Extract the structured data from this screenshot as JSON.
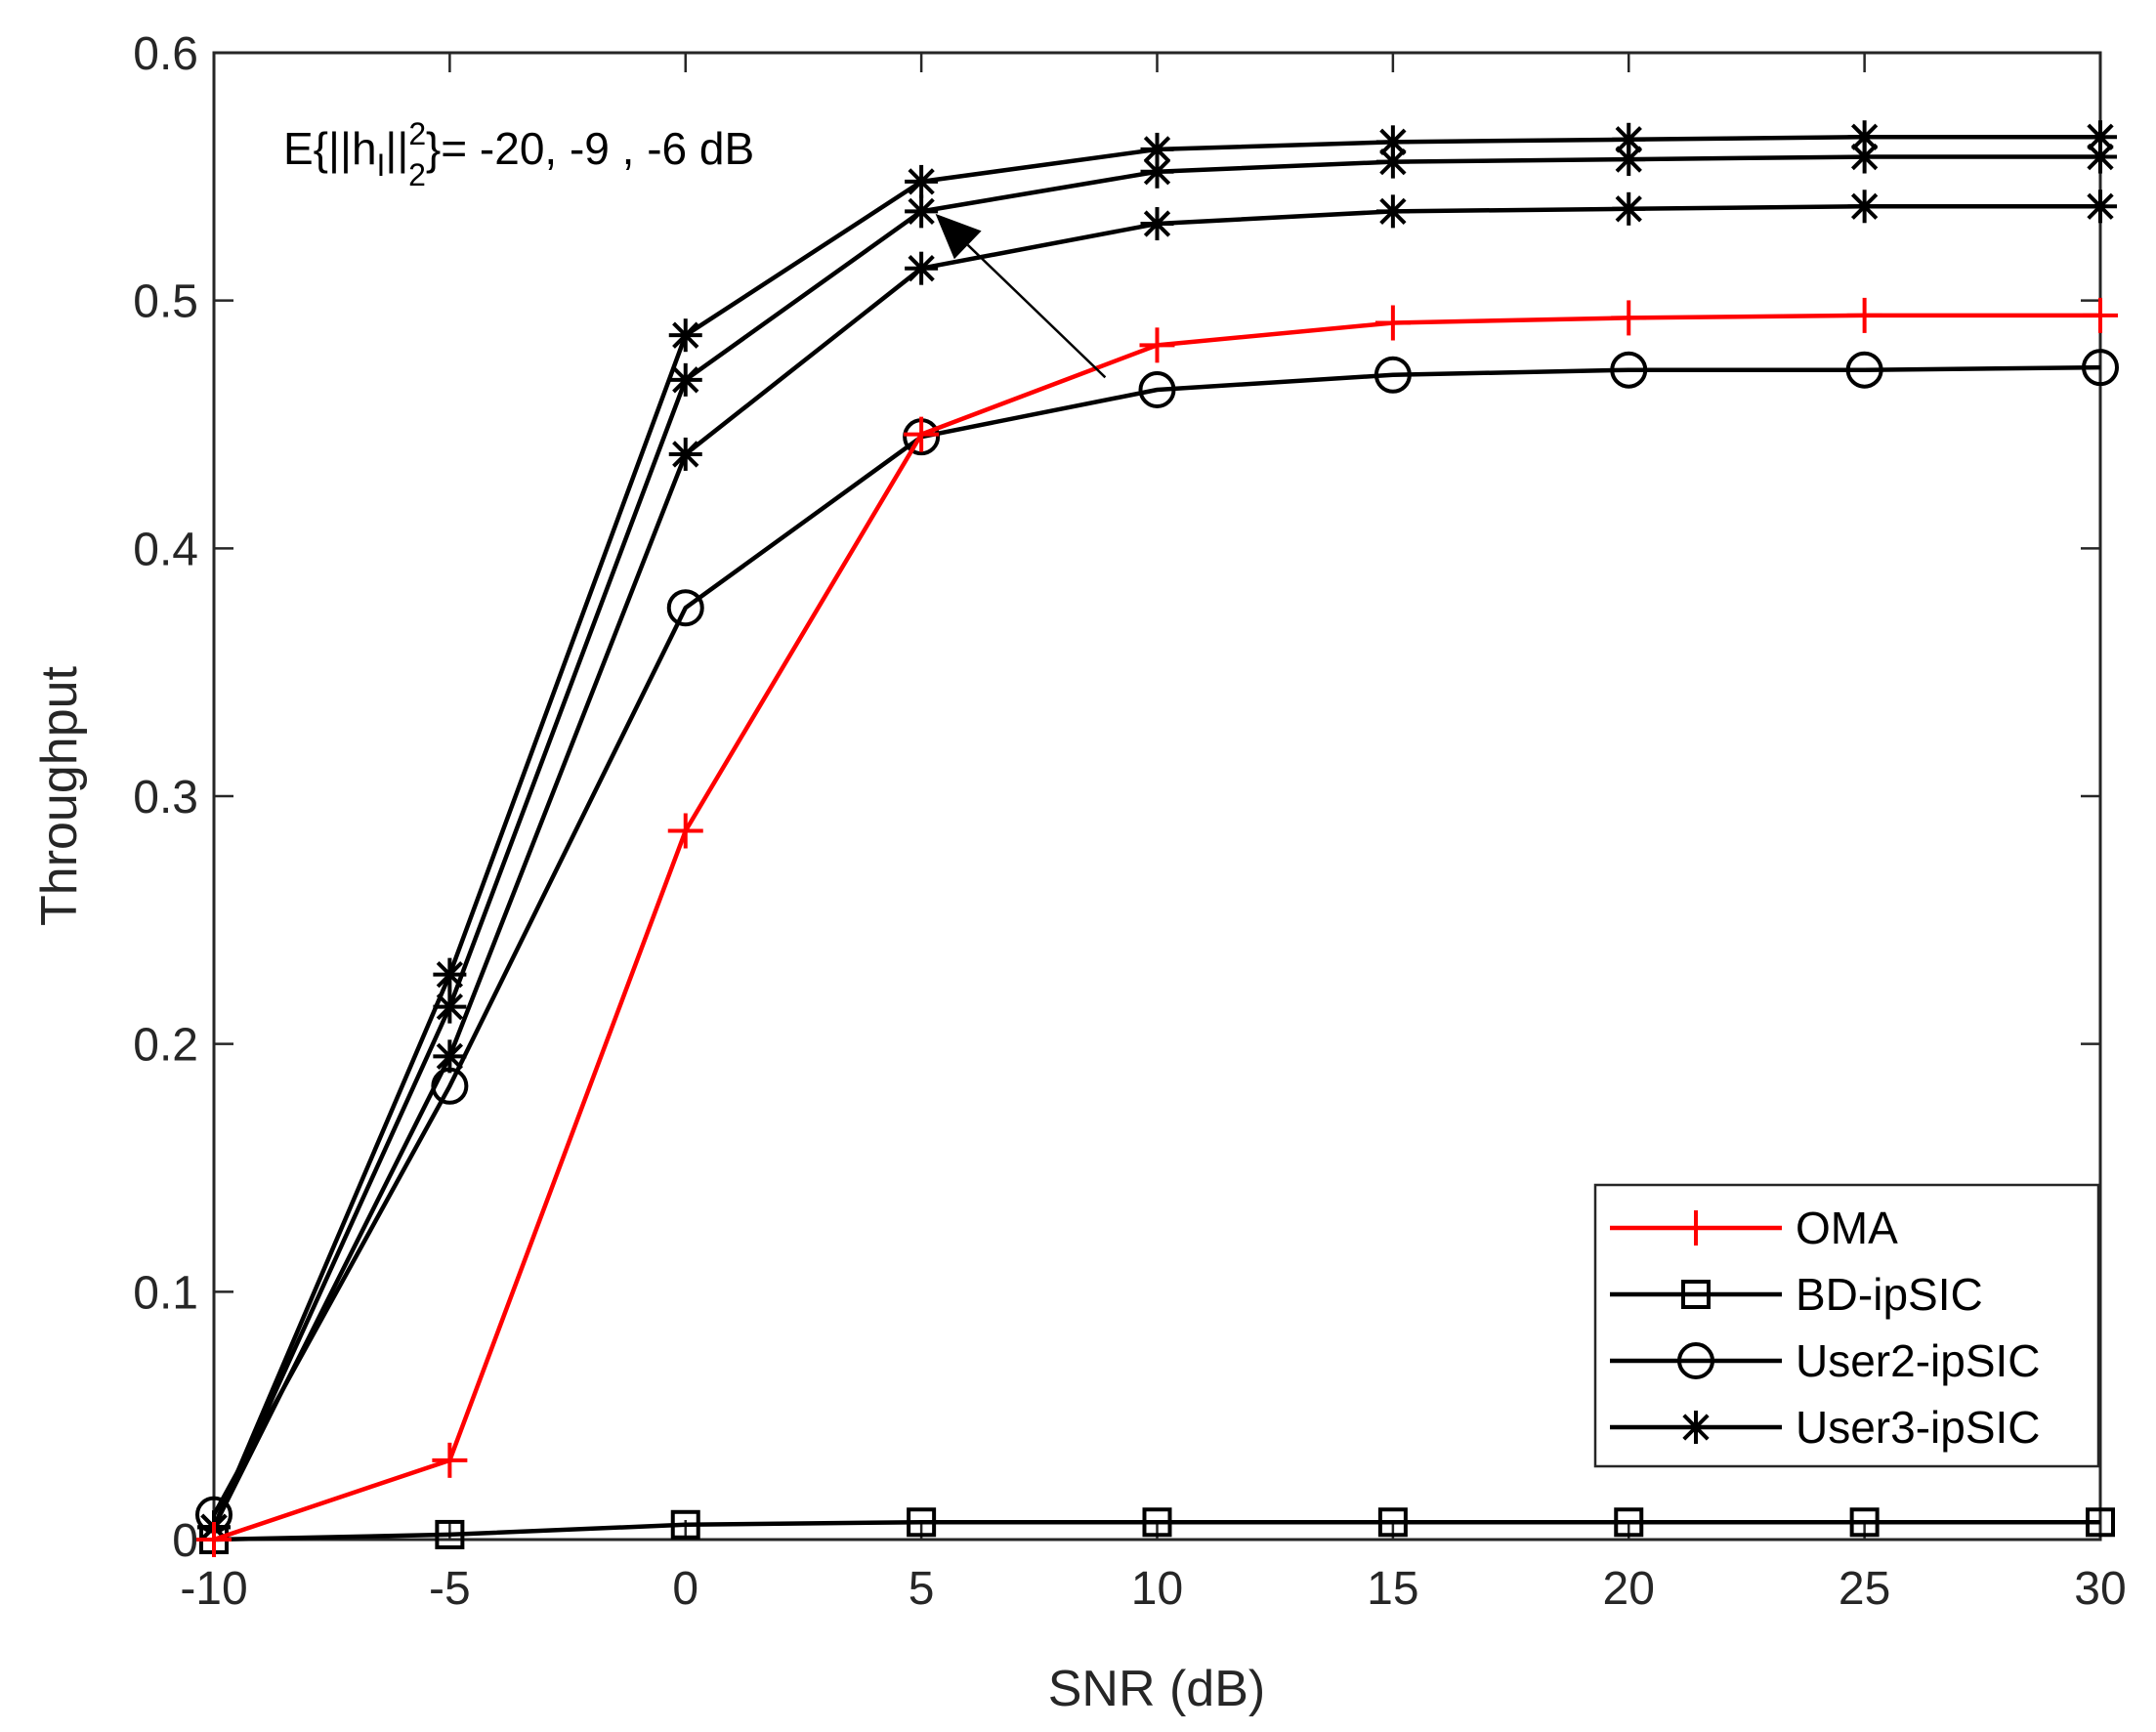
{
  "chart_data": {
    "type": "line",
    "title": "",
    "xlabel": "SNR (dB)",
    "ylabel": "Throughput",
    "xlim": [
      -10,
      30
    ],
    "ylim": [
      0,
      0.6
    ],
    "xticks": [
      -10,
      -5,
      0,
      5,
      10,
      15,
      20,
      25,
      30
    ],
    "xtick_labels": [
      "-10",
      "-5",
      "0",
      "5",
      "10",
      "15",
      "20",
      "25",
      "30"
    ],
    "yticks": [
      0,
      0.1,
      0.2,
      0.3,
      0.4,
      0.5,
      0.6
    ],
    "ytick_labels": [
      "0",
      "0.1",
      "0.2",
      "0.3",
      "0.4",
      "0.5",
      "0.6"
    ],
    "grid": false,
    "legend_position": "bottom-right",
    "x": [
      -10,
      -5,
      0,
      5,
      10,
      15,
      20,
      25,
      30
    ],
    "series": [
      {
        "name": "OMA",
        "legend": true,
        "color": "#ff0000",
        "marker": "plus",
        "values": [
          0,
          0.032,
          0.286,
          0.446,
          0.482,
          0.491,
          0.493,
          0.494,
          0.494
        ]
      },
      {
        "name": "BD-ipSIC",
        "legend": true,
        "color": "#000000",
        "marker": "square",
        "values": [
          0,
          0.002,
          0.006,
          0.007,
          0.007,
          0.007,
          0.007,
          0.007,
          0.007
        ]
      },
      {
        "name": "User2-ipSIC",
        "legend": true,
        "color": "#000000",
        "marker": "circle",
        "values": [
          0.01,
          0.183,
          0.376,
          0.445,
          0.464,
          0.47,
          0.472,
          0.472,
          0.473
        ]
      },
      {
        "name": "User3-ipSIC",
        "legend": true,
        "color": "#000000",
        "marker": "asterisk",
        "values": [
          0.005,
          0.195,
          0.438,
          0.513,
          0.531,
          0.536,
          0.537,
          0.538,
          0.538
        ]
      },
      {
        "name": "User3-ipSIC -9 dB",
        "legend": false,
        "color": "#000000",
        "marker": "asterisk",
        "values": [
          0.005,
          0.215,
          0.468,
          0.536,
          0.552,
          0.556,
          0.557,
          0.558,
          0.558
        ]
      },
      {
        "name": "User3-ipSIC -6 dB",
        "legend": false,
        "color": "#000000",
        "marker": "asterisk",
        "values": [
          0.005,
          0.228,
          0.486,
          0.548,
          0.561,
          0.564,
          0.565,
          0.566,
          0.566
        ]
      }
    ],
    "annotation": {
      "prefix": "E{||h",
      "sub1": "I",
      "mid": "||",
      "sup": "2",
      "sub2": "2",
      "suffix": "}= -20, -9 , -6 dB",
      "arrow_from": [
        8.9,
        0.469
      ],
      "arrow_to": [
        5.3,
        0.535
      ]
    }
  }
}
